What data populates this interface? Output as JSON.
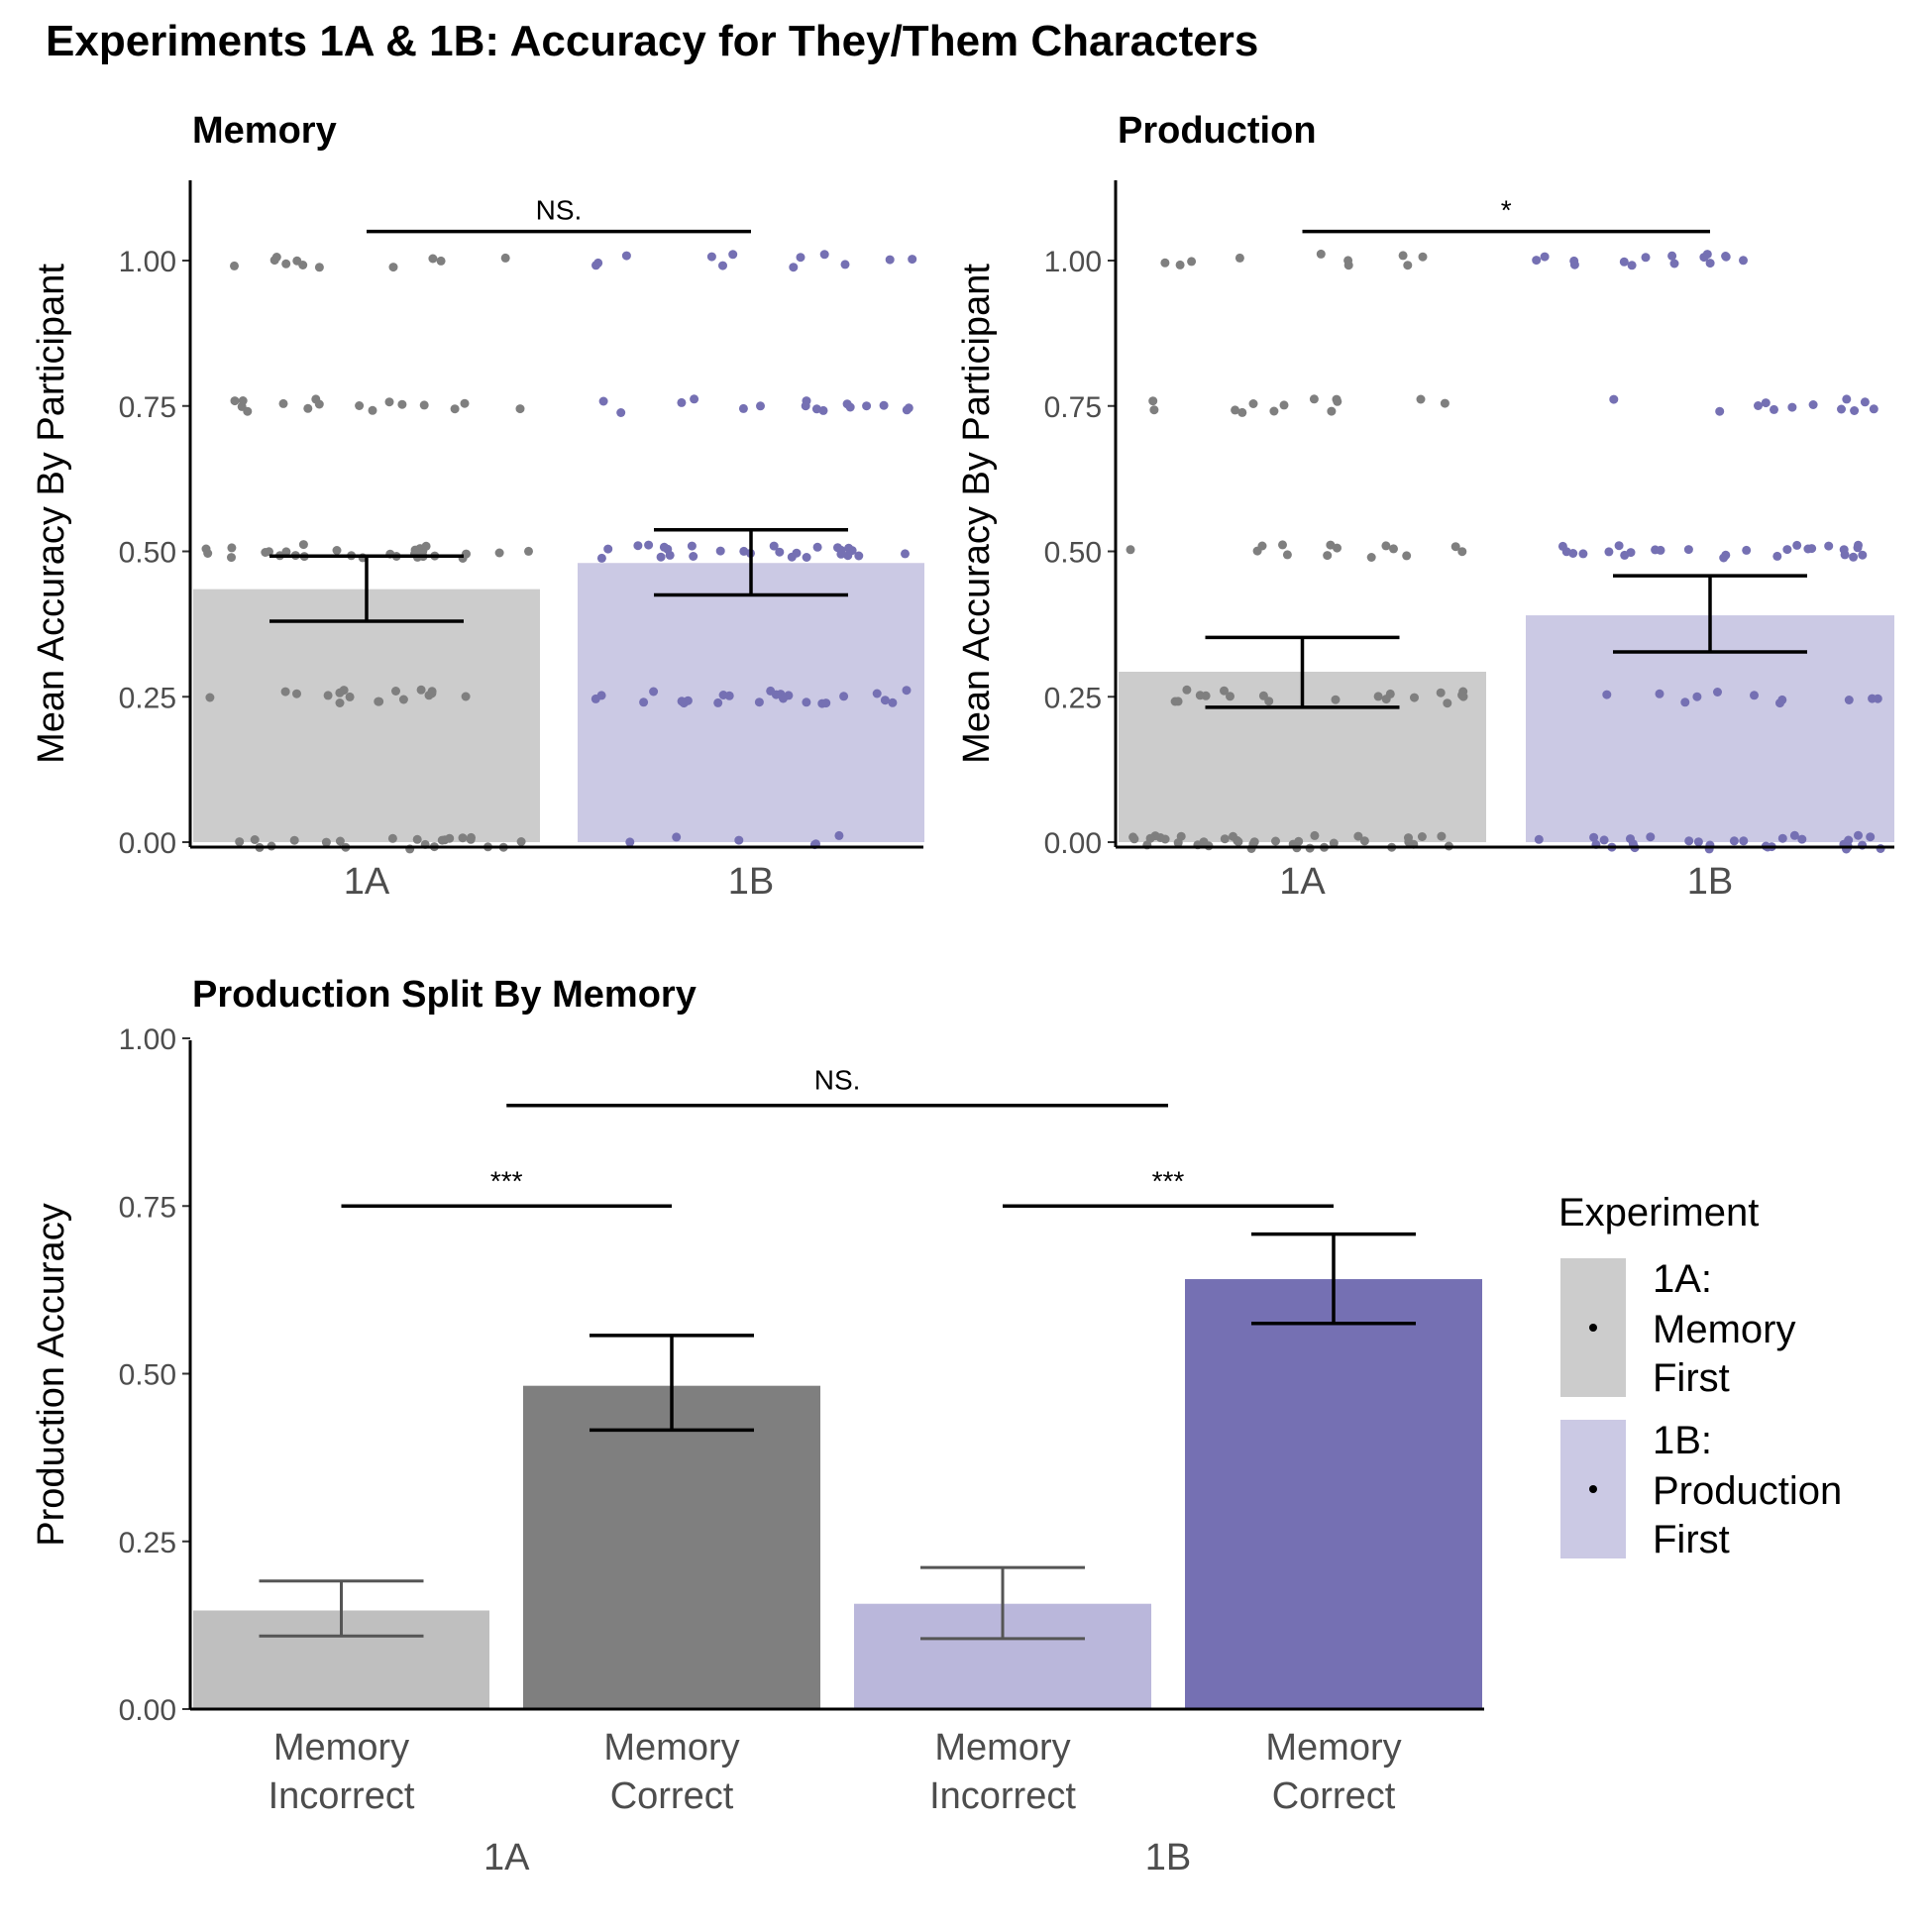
{
  "title": "Experiments 1A & 1B: Accuracy for They/Them Characters",
  "colors": {
    "gray_point": "#7f7f7f",
    "purple_point": "#7570b3",
    "gray_bar_light": "#cccccc",
    "purple_bar_light": "#cbc9e4",
    "gray_bar_mid": "#bfbfbf",
    "purple_bar_mid": "#bab7db",
    "gray_bar_dark": "#7f7f7f",
    "purple_bar_dark": "#7570b3"
  },
  "legend": {
    "title": "Experiment",
    "items": [
      {
        "label_lines": [
          "1A:",
          "Memory",
          "First"
        ],
        "color": "#cccccc"
      },
      {
        "label_lines": [
          "1B:",
          "Production",
          "First"
        ],
        "color": "#cbc9e4"
      }
    ]
  },
  "chart_data": [
    {
      "type": "bar",
      "title": "Memory",
      "ylabel": "Mean Accuracy By Participant",
      "xlabel": "",
      "ylim": [
        0,
        1.12
      ],
      "y_ticks": [
        "0.00",
        "0.25",
        "0.50",
        "0.75",
        "1.00"
      ],
      "categories": [
        "1A",
        "1B"
      ],
      "values": [
        0.435,
        0.48
      ],
      "ci_low": [
        0.38,
        0.425
      ],
      "ci_high": [
        0.492,
        0.537
      ],
      "significance": {
        "label": "NS.",
        "y": 1.05
      },
      "points": {
        "1A": {
          "0.00": 22,
          "0.25": 17,
          "0.50": 28,
          "0.75": 16,
          "1.00": 11
        },
        "1B": {
          "0.00": 6,
          "0.25": 24,
          "0.50": 27,
          "0.75": 16,
          "1.00": 12
        }
      }
    },
    {
      "type": "bar",
      "title": "Production",
      "ylabel": "Mean Accuracy By Participant",
      "xlabel": "",
      "ylim": [
        0,
        1.12
      ],
      "y_ticks": [
        "0.00",
        "0.25",
        "0.50",
        "0.75",
        "1.00"
      ],
      "categories": [
        "1A",
        "1B"
      ],
      "values": [
        0.293,
        0.39
      ],
      "ci_low": [
        0.232,
        0.327
      ],
      "ci_high": [
        0.352,
        0.458
      ],
      "significance": {
        "label": "*",
        "y": 1.05
      },
      "points": {
        "1A": {
          "0.00": 36,
          "0.25": 19,
          "0.50": 14,
          "0.75": 13,
          "1.00": 10
        },
        "1B": {
          "0.00": 30,
          "0.25": 11,
          "0.50": 26,
          "0.75": 12,
          "1.00": 15
        }
      }
    },
    {
      "type": "bar",
      "title": "Production Split By Memory",
      "ylabel": "Production Accuracy",
      "xlabel": "",
      "ylim": [
        0,
        1.0
      ],
      "y_ticks": [
        "0.00",
        "0.25",
        "0.50",
        "0.75",
        "1.00"
      ],
      "categories": [
        {
          "lines": [
            "Memory",
            "Incorrect"
          ],
          "group": "1A"
        },
        {
          "lines": [
            "Memory",
            "Correct"
          ],
          "group": "1A"
        },
        {
          "lines": [
            "Memory",
            "Incorrect"
          ],
          "group": "1B"
        },
        {
          "lines": [
            "Memory",
            "Correct"
          ],
          "group": "1B"
        }
      ],
      "groups": [
        "1A",
        "1B"
      ],
      "values": [
        0.147,
        0.482,
        0.157,
        0.641
      ],
      "ci_low": [
        0.109,
        0.416,
        0.105,
        0.575
      ],
      "ci_high": [
        0.191,
        0.557,
        0.211,
        0.708
      ],
      "comparisons": [
        {
          "label": "***",
          "from": 0,
          "to": 1,
          "y": 0.75
        },
        {
          "label": "***",
          "from": 2,
          "to": 3,
          "y": 0.75
        },
        {
          "label": "NS.",
          "from": "1A",
          "to": "1B",
          "y": 0.9
        }
      ]
    }
  ]
}
